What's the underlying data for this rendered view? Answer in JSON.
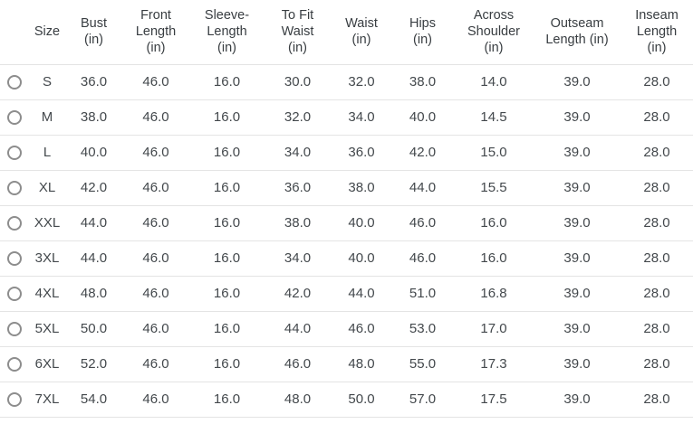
{
  "colors": {
    "divider": "#e4e4e4",
    "text": "#3e4347",
    "radio_border": "#8d8d8d",
    "background": "#ffffff"
  },
  "table": {
    "columns": [
      {
        "label": "Size"
      },
      {
        "label": "Bust\n(in)"
      },
      {
        "label": "Front\nLength\n(in)"
      },
      {
        "label": "Sleeve-\nLength\n(in)"
      },
      {
        "label": "To Fit\nWaist\n(in)"
      },
      {
        "label": "Waist\n(in)"
      },
      {
        "label": "Hips\n(in)"
      },
      {
        "label": "Across\nShoulder\n(in)"
      },
      {
        "label": "Outseam\nLength (in)"
      },
      {
        "label": "Inseam\nLength\n(in)"
      }
    ],
    "rows": [
      {
        "size": "S",
        "selected": false,
        "values": [
          "36.0",
          "46.0",
          "16.0",
          "30.0",
          "32.0",
          "38.0",
          "14.0",
          "39.0",
          "28.0"
        ]
      },
      {
        "size": "M",
        "selected": false,
        "values": [
          "38.0",
          "46.0",
          "16.0",
          "32.0",
          "34.0",
          "40.0",
          "14.5",
          "39.0",
          "28.0"
        ]
      },
      {
        "size": "L",
        "selected": false,
        "values": [
          "40.0",
          "46.0",
          "16.0",
          "34.0",
          "36.0",
          "42.0",
          "15.0",
          "39.0",
          "28.0"
        ]
      },
      {
        "size": "XL",
        "selected": false,
        "values": [
          "42.0",
          "46.0",
          "16.0",
          "36.0",
          "38.0",
          "44.0",
          "15.5",
          "39.0",
          "28.0"
        ]
      },
      {
        "size": "XXL",
        "selected": false,
        "values": [
          "44.0",
          "46.0",
          "16.0",
          "38.0",
          "40.0",
          "46.0",
          "16.0",
          "39.0",
          "28.0"
        ]
      },
      {
        "size": "3XL",
        "selected": false,
        "values": [
          "44.0",
          "46.0",
          "16.0",
          "34.0",
          "40.0",
          "46.0",
          "16.0",
          "39.0",
          "28.0"
        ]
      },
      {
        "size": "4XL",
        "selected": false,
        "values": [
          "48.0",
          "46.0",
          "16.0",
          "42.0",
          "44.0",
          "51.0",
          "16.8",
          "39.0",
          "28.0"
        ]
      },
      {
        "size": "5XL",
        "selected": false,
        "values": [
          "50.0",
          "46.0",
          "16.0",
          "44.0",
          "46.0",
          "53.0",
          "17.0",
          "39.0",
          "28.0"
        ]
      },
      {
        "size": "6XL",
        "selected": false,
        "values": [
          "52.0",
          "46.0",
          "16.0",
          "46.0",
          "48.0",
          "55.0",
          "17.3",
          "39.0",
          "28.0"
        ]
      },
      {
        "size": "7XL",
        "selected": false,
        "values": [
          "54.0",
          "46.0",
          "16.0",
          "48.0",
          "50.0",
          "57.0",
          "17.5",
          "39.0",
          "28.0"
        ]
      }
    ]
  }
}
